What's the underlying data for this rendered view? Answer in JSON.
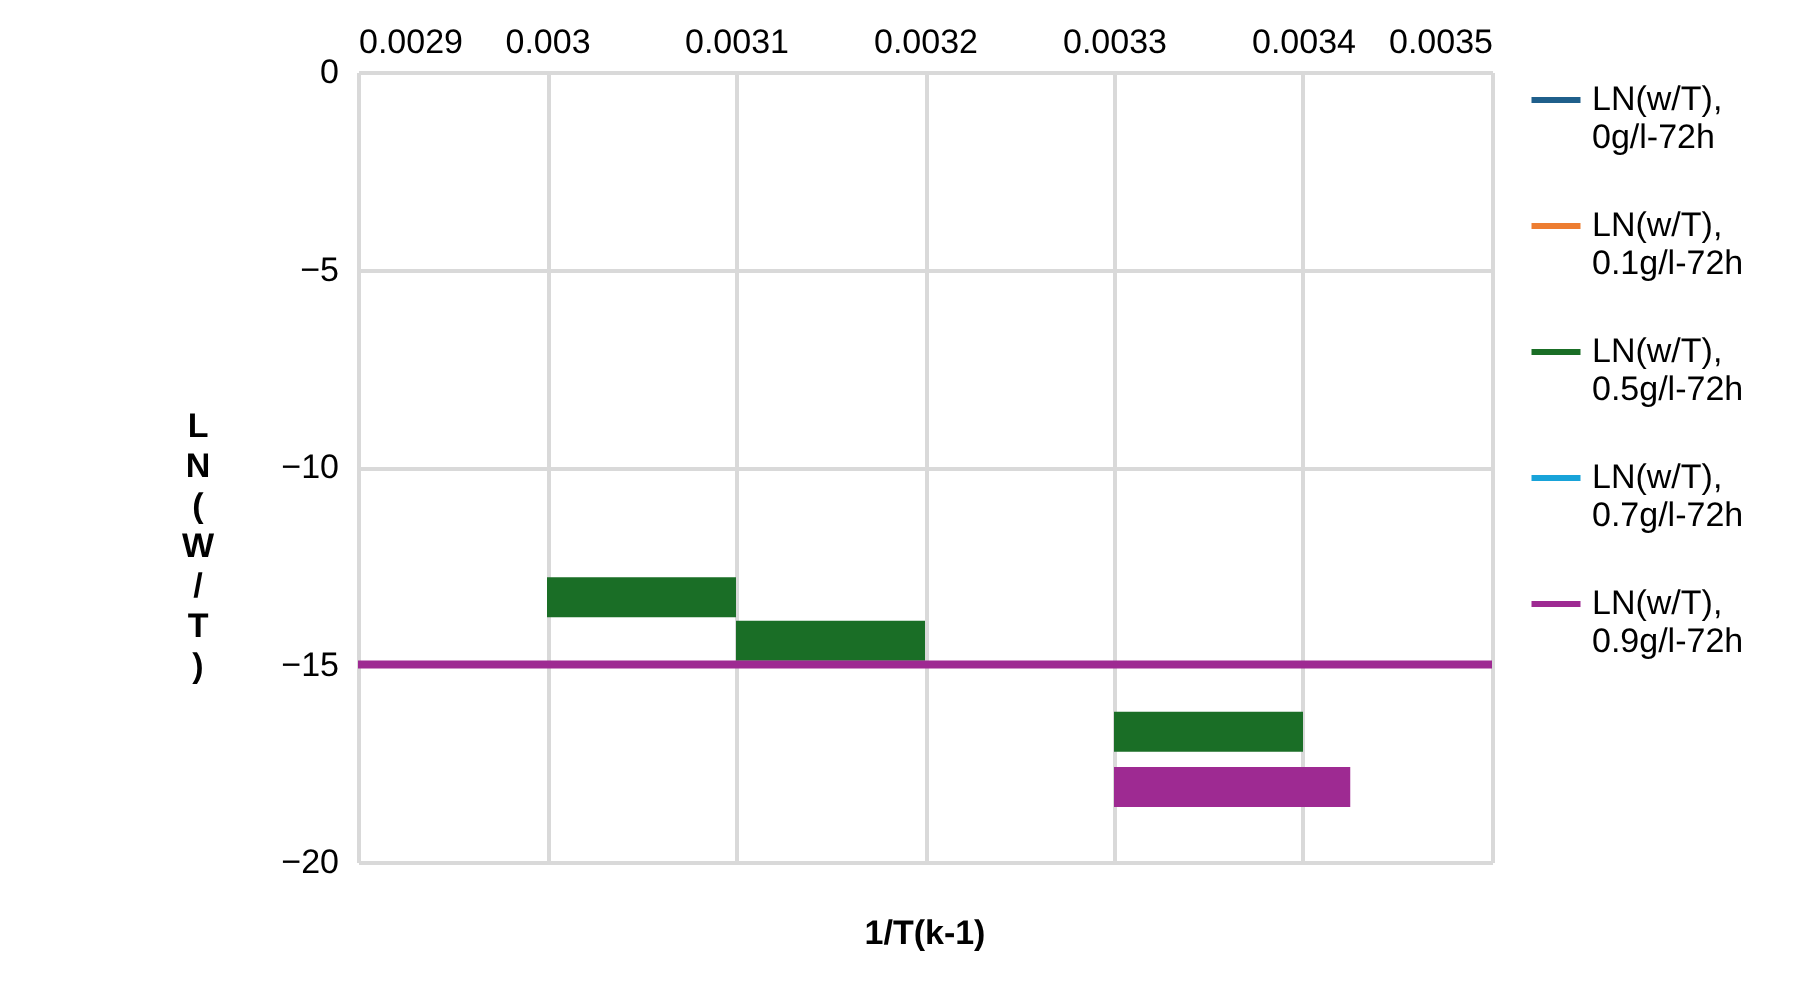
{
  "chart_data": {
    "type": "line",
    "xlabel": "1/T(k-1)",
    "ylabel": "LN(W/T)",
    "xlim": [
      0.0029,
      0.0035
    ],
    "xticks": [
      0.0029,
      0.003,
      0.0031,
      0.0032,
      0.0033,
      0.0034,
      0.0035
    ],
    "ylim": [
      -20,
      0
    ],
    "yticks": [
      -20,
      -15,
      -10,
      -5,
      0
    ],
    "grid": true,
    "legend": "right",
    "marker": "none",
    "series": [
      {
        "name": "LN(w/T), 0g/l-72h",
        "color": "#1f5f8b"
      },
      {
        "name": "LN(w/T), 0.1g/l-72h",
        "color": "#ed7d31"
      },
      {
        "name": "LN(w/T), 0.5g/l-72h",
        "color": "#1a6e26",
        "x": [
          0.003,
          0.0031,
          null,
          0.0031,
          0.0032,
          null,
          0.0033,
          0.0034
        ],
        "values": [
          -13.3,
          -13.3,
          null,
          -14.4,
          -14.4,
          null,
          -16.7,
          -16.7
        ]
      },
      {
        "name": "LN(w/T), 0.7g/l-72h",
        "color": "#18a3d9"
      },
      {
        "name": "LN(w/T), 0.9g/l-72h",
        "color": "#9e2a92",
        "x": [
          0.0033,
          0.003425
        ],
        "values": [
          -18.1,
          -18.1
        ]
      }
    ],
    "ref_lines": [
      {
        "axis": "y",
        "value": -15,
        "label": null,
        "color": "#9e2a92"
      }
    ]
  }
}
